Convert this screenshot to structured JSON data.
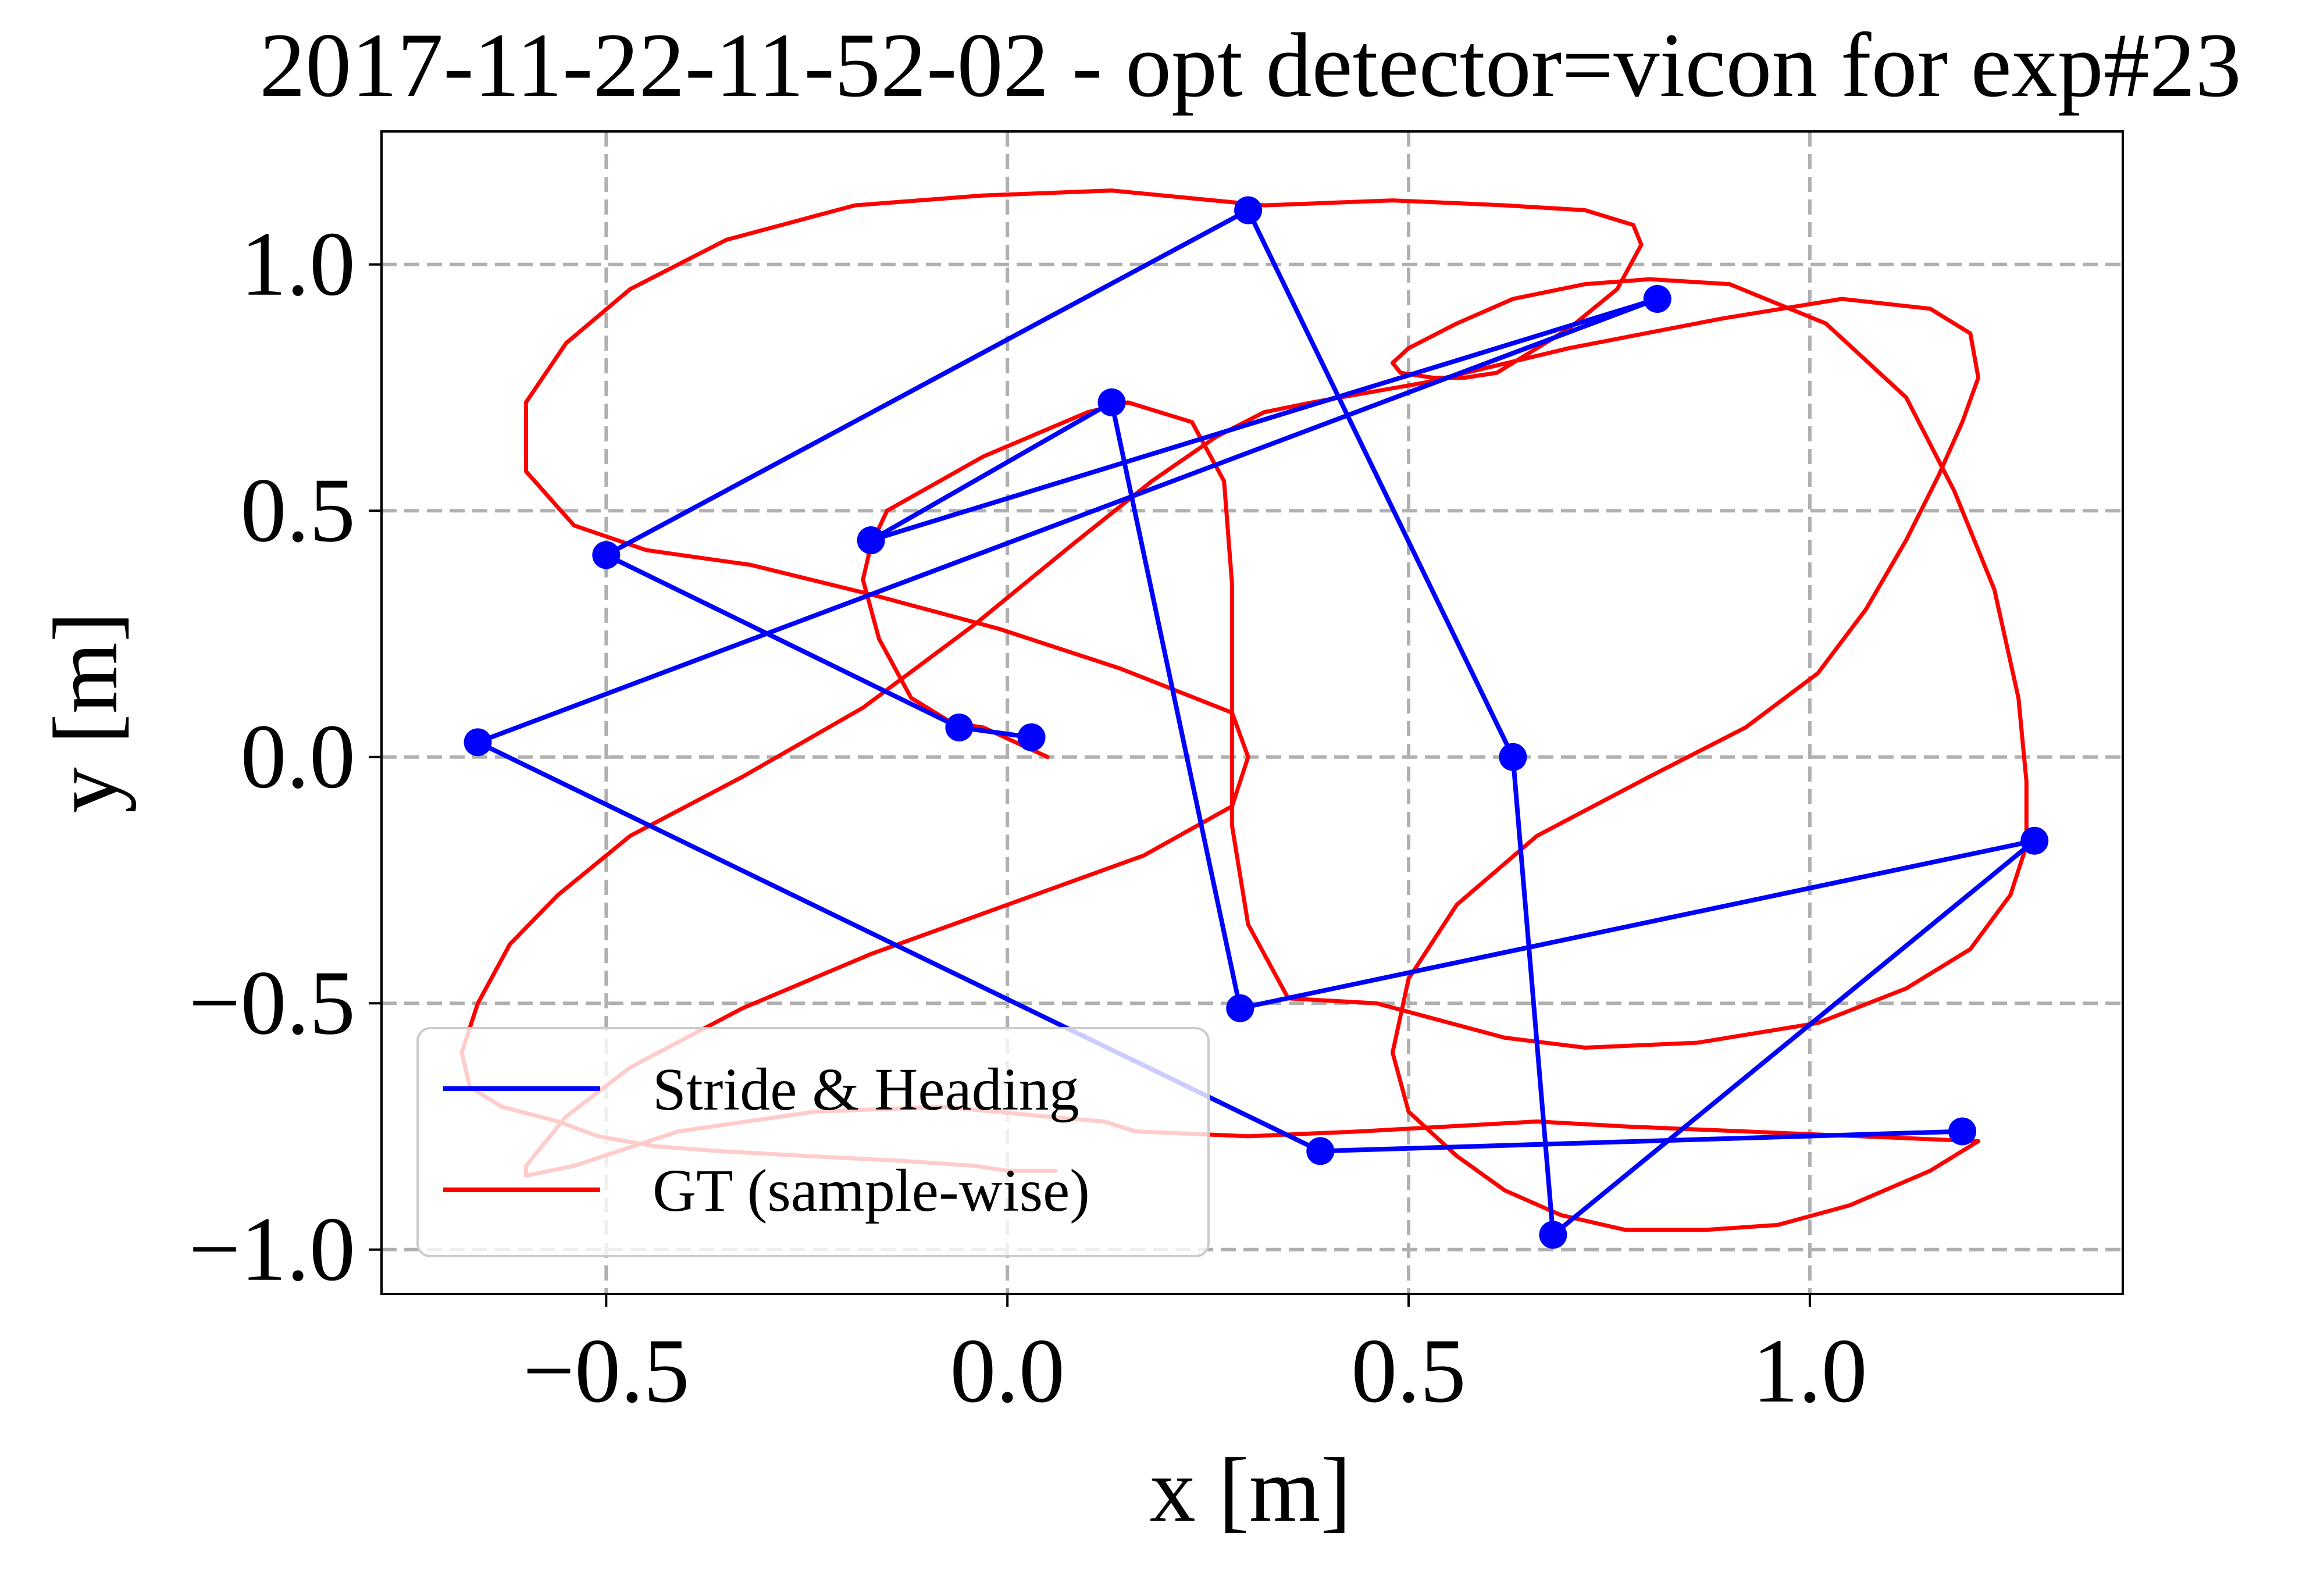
{
  "chart_data": {
    "type": "line",
    "title": "2017-11-22-11-52-02 - opt detector=vicon for exp#23",
    "xlabel": "x [m]",
    "ylabel": "y [m]",
    "xlim": [
      -0.78,
      1.39
    ],
    "ylim": [
      -1.09,
      1.27
    ],
    "xticks": [
      -0.5,
      0.0,
      0.5,
      1.0
    ],
    "yticks": [
      -1.0,
      -0.5,
      0.0,
      0.5,
      1.0
    ],
    "xtick_labels": [
      "−0.5",
      "0.0",
      "0.5",
      "1.0"
    ],
    "ytick_labels": [
      "−1.0",
      "−0.5",
      "0.0",
      "0.5",
      "1.0"
    ],
    "grid": true,
    "grid_style": "dashed",
    "legend_position": "lower-left",
    "series": [
      {
        "name": "Stride & Heading",
        "color": "#0000ff",
        "marker": "circle",
        "x": [
          0.03,
          -0.06,
          -0.5,
          0.3,
          0.63,
          0.68,
          1.28,
          0.29,
          0.13,
          -0.17,
          0.81,
          -0.66,
          0.39,
          1.19
        ],
        "y": [
          0.04,
          0.06,
          0.41,
          1.11,
          0.0,
          -0.97,
          -0.17,
          -0.51,
          0.72,
          0.44,
          0.93,
          0.03,
          -0.8,
          -0.76
        ]
      },
      {
        "name": "GT (sample-wise)",
        "color": "#ff0000",
        "x": [
          0.05,
          -0.03,
          -0.07,
          -0.12,
          -0.16,
          -0.18,
          -0.17,
          -0.15,
          -0.03,
          0.1,
          0.15,
          0.23,
          0.27,
          0.28,
          0.28,
          0.28,
          0.3,
          0.35,
          0.46,
          0.62,
          0.72,
          0.86,
          1.01,
          1.12,
          1.2,
          1.25,
          1.27,
          1.27,
          1.26,
          1.23,
          1.18,
          1.12,
          1.02,
          0.9,
          0.8,
          0.72,
          0.63,
          0.56,
          0.5,
          0.48,
          0.49,
          0.53,
          0.57,
          0.61,
          0.65,
          0.7,
          0.76,
          0.79,
          0.78,
          0.72,
          0.62,
          0.48,
          0.32,
          0.13,
          -0.03,
          -0.19,
          -0.35,
          -0.47,
          -0.55,
          -0.6,
          -0.6,
          -0.54,
          -0.45,
          -0.32,
          -0.17,
          -0.01,
          0.14,
          0.28,
          0.3,
          0.28,
          0.17,
          0.0,
          -0.17,
          -0.33,
          -0.47,
          -0.55,
          -0.58,
          -0.6,
          -0.6,
          -0.54,
          -0.41,
          -0.24,
          -0.08,
          0.05,
          0.12,
          0.14,
          0.16,
          0.3,
          0.44,
          0.55,
          0.66,
          0.77,
          1.21,
          1.15,
          1.05,
          0.96,
          0.87,
          0.77,
          0.69,
          0.62,
          0.56,
          0.5,
          0.48,
          0.5,
          0.56,
          0.66,
          0.8,
          0.92,
          1.01,
          1.07,
          1.12,
          1.16,
          1.19,
          1.21,
          1.2,
          1.15,
          1.04,
          0.89,
          0.7,
          0.52,
          0.38,
          0.32,
          0.26,
          0.18,
          0.08,
          -0.04,
          -0.18,
          -0.33,
          -0.47,
          -0.56,
          -0.62,
          -0.66,
          -0.68,
          -0.67,
          -0.63,
          -0.56,
          -0.51,
          -0.44,
          -0.36,
          -0.25,
          -0.13,
          -0.04,
          0.0,
          0.03,
          0.06
        ],
        "y": [
          0.0,
          0.06,
          0.07,
          0.12,
          0.24,
          0.36,
          0.43,
          0.5,
          0.61,
          0.7,
          0.72,
          0.68,
          0.56,
          0.35,
          0.1,
          -0.14,
          -0.34,
          -0.49,
          -0.5,
          -0.57,
          -0.59,
          -0.58,
          -0.54,
          -0.47,
          -0.39,
          -0.28,
          -0.18,
          -0.05,
          0.12,
          0.34,
          0.54,
          0.73,
          0.88,
          0.96,
          0.97,
          0.96,
          0.93,
          0.88,
          0.83,
          0.8,
          0.78,
          0.77,
          0.77,
          0.78,
          0.82,
          0.87,
          0.95,
          1.04,
          1.08,
          1.11,
          1.12,
          1.13,
          1.12,
          1.15,
          1.14,
          1.12,
          1.05,
          0.95,
          0.84,
          0.72,
          0.58,
          0.47,
          0.42,
          0.39,
          0.33,
          0.26,
          0.18,
          0.09,
          0.0,
          -0.1,
          -0.2,
          -0.3,
          -0.4,
          -0.51,
          -0.63,
          -0.73,
          -0.79,
          -0.83,
          -0.85,
          -0.83,
          -0.76,
          -0.72,
          -0.71,
          -0.73,
          -0.74,
          -0.75,
          -0.76,
          -0.77,
          -0.76,
          -0.75,
          -0.74,
          -0.75,
          -0.78,
          -0.84,
          -0.91,
          -0.95,
          -0.96,
          -0.96,
          -0.93,
          -0.88,
          -0.81,
          -0.72,
          -0.6,
          -0.45,
          -0.3,
          -0.16,
          -0.04,
          0.06,
          0.17,
          0.3,
          0.44,
          0.57,
          0.68,
          0.77,
          0.86,
          0.91,
          0.93,
          0.89,
          0.83,
          0.76,
          0.72,
          0.7,
          0.65,
          0.56,
          0.43,
          0.27,
          0.1,
          -0.04,
          -0.16,
          -0.28,
          -0.38,
          -0.5,
          -0.6,
          -0.67,
          -0.71,
          -0.74,
          -0.77,
          -0.79,
          -0.8,
          -0.81,
          -0.82,
          -0.83,
          -0.84,
          -0.84,
          -0.84
        ]
      }
    ]
  }
}
